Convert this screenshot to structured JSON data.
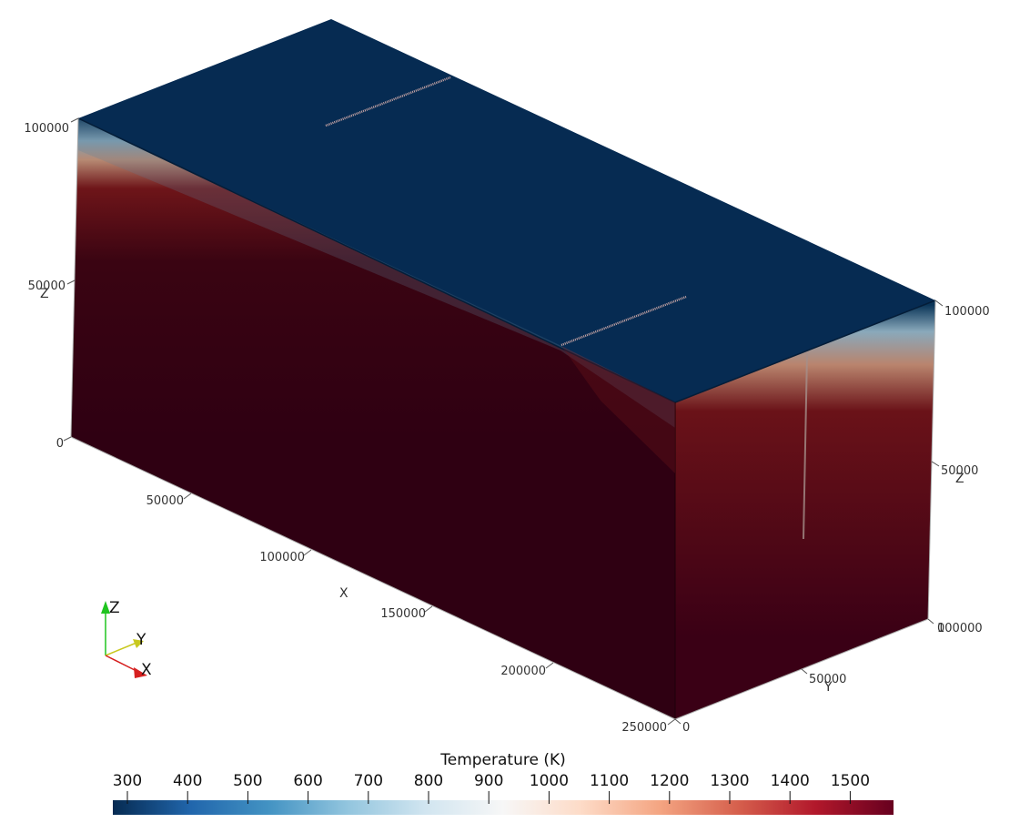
{
  "viewer": {
    "colorbar": {
      "title": "Temperature (K)",
      "ticks": [
        "300",
        "400",
        "500",
        "600",
        "700",
        "800",
        "900",
        "1000",
        "1100",
        "1200",
        "1300",
        "1400",
        "1500"
      ],
      "stops": [
        "#062b52",
        "#2166ac",
        "#4393c3",
        "#92c5de",
        "#d1e5f0",
        "#f7f7f7",
        "#fddbc7",
        "#f4a582",
        "#d6604d",
        "#b2182b",
        "#67001f"
      ]
    },
    "axes": {
      "x": {
        "title": "X",
        "labels": [
          "50000",
          "100000",
          "150000",
          "200000",
          "250000"
        ]
      },
      "y": {
        "title": "Y",
        "labels": [
          "0",
          "50000",
          "100000"
        ]
      },
      "z_left": {
        "title": "Z",
        "labels": [
          "0",
          "50000",
          "100000"
        ]
      },
      "z_right": {
        "title": "Z",
        "labels": [
          "0",
          "50000",
          "100000"
        ]
      }
    },
    "orientation": {
      "x": "X",
      "y": "Y",
      "z": "Z"
    },
    "colors": {
      "surface_cold": "#062b52",
      "surface_hot": "#2f0012",
      "fault_trace": "#c9a6a6",
      "axis_x": "#d62020",
      "axis_y": "#c8c81e",
      "axis_z": "#1fc41f"
    }
  }
}
